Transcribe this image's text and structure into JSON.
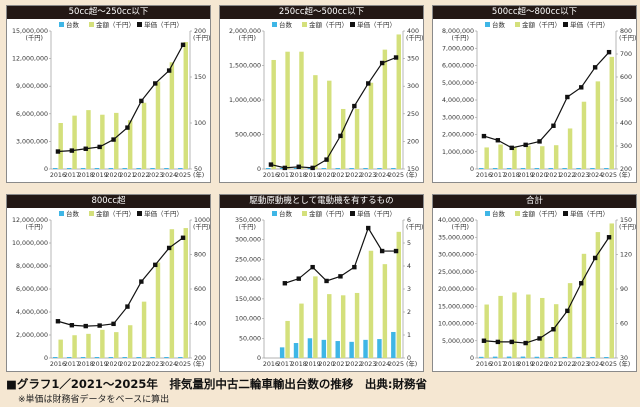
{
  "caption": "■グラフ1／2021〜2025年　排気量別中古二輪車輸出台数の推移　出典:財務省",
  "note": "※単価は財務省データをベースに算出",
  "colors": {
    "units": "#3fb6e6",
    "amount": "#d4e07c",
    "price": "#111111",
    "title_bg": "#231815"
  },
  "legend": {
    "units": "台数",
    "amount": "金額（千円）",
    "price": "単価（千円）"
  },
  "chart_data": [
    {
      "type": "bar+line",
      "title": "50cc超〜250cc以下",
      "categories": [
        "2016",
        "2017",
        "2018",
        "2019",
        "2020",
        "2021",
        "2022",
        "2023",
        "2024",
        "2025"
      ],
      "x_unit": "(年)",
      "left_axis": {
        "unit": "(千円)",
        "ylim": [
          0,
          15000000
        ],
        "ticks": [
          0,
          3000000,
          6000000,
          9000000,
          12000000,
          15000000
        ],
        "tick_labels": [
          "0",
          "3,000,000",
          "6,000,000",
          "9,000,000",
          "12,000,000",
          "15,000,000"
        ]
      },
      "right_axis": {
        "unit": "(千円)",
        "ylim": [
          50,
          200
        ],
        "ticks": [
          50,
          100,
          150,
          200
        ],
        "tick_labels": [
          "50",
          "100",
          "150",
          "200"
        ]
      },
      "series": [
        {
          "name": "台数",
          "kind": "bar",
          "axis": "left",
          "values": [
            20000,
            20000,
            20000,
            20000,
            20000,
            20000,
            20000,
            20000,
            20000,
            20000
          ]
        },
        {
          "name": "金額（千円）",
          "kind": "bar",
          "axis": "left",
          "values": [
            5000000,
            5800000,
            6400000,
            5900000,
            6100000,
            5300000,
            7200000,
            9500000,
            11600000,
            13800000
          ]
        },
        {
          "name": "単価（千円）",
          "kind": "line",
          "axis": "right",
          "values": [
            69,
            70,
            72,
            74,
            82,
            95,
            124,
            143,
            157,
            185
          ]
        }
      ]
    },
    {
      "type": "bar+line",
      "title": "250cc超〜500cc以下",
      "categories": [
        "2016",
        "2017",
        "2018",
        "2019",
        "2020",
        "2021",
        "2022",
        "2023",
        "2024",
        "2025"
      ],
      "x_unit": "(年)",
      "left_axis": {
        "unit": "(千円)",
        "ylim": [
          0,
          2000000
        ],
        "ticks": [
          0,
          500000,
          1000000,
          1500000,
          2000000
        ],
        "tick_labels": [
          "0",
          "500,000",
          "1,000,000",
          "1,500,000",
          "2,000,000"
        ]
      },
      "right_axis": {
        "unit": "(千円)",
        "ylim": [
          150,
          400
        ],
        "ticks": [
          150,
          200,
          250,
          300,
          350,
          400
        ],
        "tick_labels": [
          "150",
          "200",
          "250",
          "300",
          "350",
          "400"
        ]
      },
      "series": [
        {
          "name": "台数",
          "kind": "bar",
          "axis": "left",
          "values": [
            6000,
            6000,
            6000,
            5000,
            5000,
            3000,
            3000,
            4000,
            5000,
            5500
          ]
        },
        {
          "name": "金額（千円）",
          "kind": "bar",
          "axis": "left",
          "values": [
            1580000,
            1700000,
            1700000,
            1360000,
            1280000,
            870000,
            870000,
            1250000,
            1730000,
            1950000
          ]
        },
        {
          "name": "単価（千円）",
          "kind": "line",
          "axis": "right",
          "values": [
            158,
            152,
            154,
            152,
            167,
            210,
            264,
            305,
            342,
            352
          ]
        }
      ]
    },
    {
      "type": "bar+line",
      "title": "500cc超〜800cc以下",
      "categories": [
        "2016",
        "2017",
        "2018",
        "2019",
        "2020",
        "2021",
        "2022",
        "2023",
        "2024",
        "2025"
      ],
      "x_unit": "(年)",
      "left_axis": {
        "unit": "(千円)",
        "ylim": [
          0,
          8000000
        ],
        "ticks": [
          0,
          1000000,
          2000000,
          3000000,
          4000000,
          5000000,
          6000000,
          7000000,
          8000000
        ],
        "tick_labels": [
          "0",
          "1,000,000",
          "2,000,000",
          "3,000,000",
          "4,000,000",
          "5,000,000",
          "6,000,000",
          "7,000,000",
          "8,000,000"
        ]
      },
      "right_axis": {
        "unit": "(千円)",
        "ylim": [
          200,
          800
        ],
        "ticks": [
          200,
          300,
          400,
          500,
          600,
          700,
          800
        ],
        "tick_labels": [
          "200",
          "300",
          "400",
          "500",
          "600",
          "700",
          "800"
        ]
      },
      "series": [
        {
          "name": "台数",
          "kind": "bar",
          "axis": "left",
          "values": [
            4000,
            4000,
            4000,
            4000,
            4000,
            4000,
            5000,
            7000,
            8000,
            9000
          ]
        },
        {
          "name": "金額（千円）",
          "kind": "bar",
          "axis": "left",
          "values": [
            1250000,
            1420000,
            1250000,
            1350000,
            1320000,
            1380000,
            2350000,
            3900000,
            5080000,
            6500000
          ]
        },
        {
          "name": "単価（千円）",
          "kind": "line",
          "axis": "right",
          "values": [
            343,
            325,
            292,
            305,
            320,
            388,
            513,
            555,
            642,
            708
          ]
        }
      ]
    },
    {
      "type": "bar+line",
      "title": "800cc超",
      "categories": [
        "2016",
        "2017",
        "2018",
        "2019",
        "2020",
        "2021",
        "2022",
        "2023",
        "2024",
        "2025"
      ],
      "x_unit": "(年)",
      "left_axis": {
        "unit": "(千円)",
        "ylim": [
          0,
          12000000
        ],
        "ticks": [
          0,
          2000000,
          4000000,
          6000000,
          8000000,
          10000000,
          12000000
        ],
        "tick_labels": [
          "0",
          "2,000,000",
          "4,000,000",
          "6,000,000",
          "8,000,000",
          "10,000,000",
          "12,000,000"
        ]
      },
      "right_axis": {
        "unit": "(千円)",
        "ylim": [
          200,
          1000
        ],
        "ticks": [
          200,
          400,
          600,
          800,
          1000
        ],
        "tick_labels": [
          "200",
          "400",
          "600",
          "800",
          "1000"
        ]
      },
      "series": [
        {
          "name": "台数",
          "kind": "bar",
          "axis": "left",
          "values": [
            4000,
            5000,
            5500,
            6000,
            5500,
            5500,
            7500,
            11000,
            13000,
            12500
          ]
        },
        {
          "name": "金額（千円）",
          "kind": "bar",
          "axis": "left",
          "values": [
            1600000,
            1980000,
            2100000,
            2450000,
            2250000,
            2850000,
            4900000,
            8300000,
            11200000,
            11300000
          ]
        },
        {
          "name": "単価（千円）",
          "kind": "line",
          "axis": "right",
          "values": [
            413,
            390,
            385,
            388,
            398,
            498,
            643,
            740,
            838,
            897
          ]
        }
      ]
    },
    {
      "type": "bar+line",
      "title": "駆動原動機として電動機を有するもの",
      "categories": [
        "2016",
        "2017",
        "2018",
        "2019",
        "2020",
        "2021",
        "2022",
        "2023",
        "2024",
        "2025"
      ],
      "x_unit": "(年)",
      "left_axis": {
        "unit": "(千円)",
        "ylim": [
          0,
          350000
        ],
        "ticks": [
          0,
          50000,
          100000,
          150000,
          200000,
          250000,
          300000,
          350000
        ],
        "tick_labels": [
          "0",
          "50,000",
          "100,000",
          "150,000",
          "200,000",
          "250,000",
          "300,000",
          "350,000"
        ]
      },
      "right_axis": {
        "unit": "(千円)",
        "ylim": [
          0,
          6
        ],
        "ticks": [
          0,
          1,
          2,
          3,
          4,
          5,
          6
        ],
        "tick_labels": [
          "0",
          "1",
          "2",
          "3",
          "4",
          "5",
          "6"
        ]
      },
      "series": [
        {
          "name": "台数",
          "kind": "bar",
          "axis": "left",
          "values": [
            null,
            27000,
            38000,
            50000,
            46000,
            43000,
            41000,
            46000,
            48000,
            66000
          ]
        },
        {
          "name": "金額（千円）",
          "kind": "bar",
          "axis": "left",
          "values": [
            null,
            94000,
            138000,
            207000,
            162000,
            159000,
            165000,
            272000,
            238000,
            320000
          ]
        },
        {
          "name": "単価（千円）",
          "kind": "line",
          "axis": "right",
          "values": [
            null,
            3.25,
            3.45,
            3.95,
            3.35,
            3.55,
            3.95,
            5.65,
            4.65,
            4.65
          ]
        }
      ]
    },
    {
      "type": "bar+line",
      "title": "合計",
      "categories": [
        "2016",
        "2017",
        "2018",
        "2019",
        "2020",
        "2021",
        "2022",
        "2023",
        "2024",
        "2025"
      ],
      "x_unit": "(年)",
      "left_axis": {
        "unit": "(千円)",
        "ylim": [
          0,
          40000000
        ],
        "ticks": [
          0,
          5000000,
          10000000,
          15000000,
          20000000,
          25000000,
          30000000,
          35000000,
          40000000
        ],
        "tick_labels": [
          "0",
          "5,000,000",
          "10,000,000",
          "15,000,000",
          "20,000,000",
          "25,000,000",
          "30,000,000",
          "35,000,000",
          "40,000,000"
        ]
      },
      "right_axis": {
        "unit": "(千円)",
        "ylim": [
          30,
          150
        ],
        "ticks": [
          30,
          60,
          90,
          120,
          150
        ],
        "tick_labels": [
          "30",
          "60",
          "90",
          "120",
          "150"
        ]
      },
      "series": [
        {
          "name": "台数",
          "kind": "bar",
          "axis": "left",
          "values": [
            340000,
            400000,
            420000,
            410000,
            360000,
            280000,
            300000,
            310000,
            300000,
            280000
          ]
        },
        {
          "name": "金額（千円）",
          "kind": "bar",
          "axis": "left",
          "values": [
            15500000,
            18000000,
            19000000,
            18400000,
            17400000,
            15600000,
            21700000,
            30200000,
            36500000,
            39000000
          ]
        },
        {
          "name": "単価（千円）",
          "kind": "line",
          "axis": "right",
          "values": [
            45,
            44,
            44,
            43,
            47,
            55,
            71,
            95,
            117,
            135
          ]
        }
      ]
    }
  ]
}
